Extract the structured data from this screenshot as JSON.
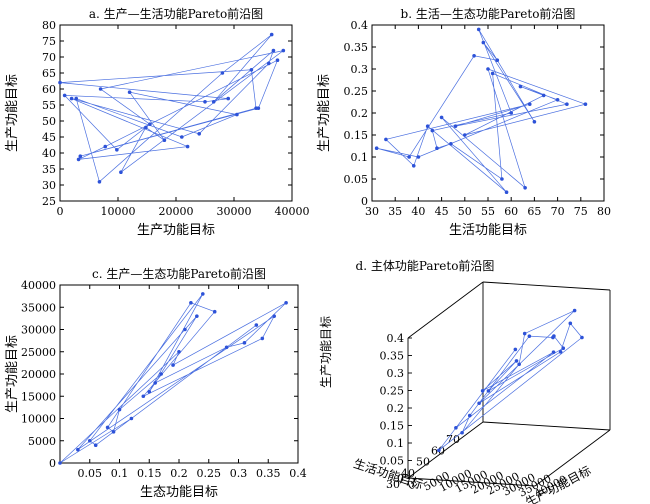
{
  "figure": {
    "colors": {
      "line": "#4a6fe0",
      "marker": "#2d52d8",
      "axis": "#000000"
    }
  },
  "chart_data": [
    {
      "id": "a",
      "type": "line",
      "title": "a. 生产—生活功能Pareto前沿图",
      "xlabel": "生产功能目标",
      "ylabel": "生产功能目标",
      "xlim": [
        0,
        40000
      ],
      "ylim": [
        25,
        80
      ],
      "xticks": [
        0,
        10000,
        20000,
        30000,
        40000
      ],
      "yticks": [
        25,
        30,
        35,
        40,
        45,
        50,
        55,
        60,
        65,
        70,
        75,
        80
      ],
      "grid": false,
      "x": [
        36500,
        0,
        2800,
        3500,
        12000,
        7800,
        10500,
        2000,
        15500,
        36800,
        25000,
        28000,
        33000,
        21000,
        34200,
        18000,
        3200,
        38500,
        24000,
        9800,
        26500,
        29000,
        6800,
        33800,
        30500,
        37500,
        14800,
        22000,
        7000,
        36000,
        800
      ],
      "y": [
        77,
        62,
        57,
        39,
        59,
        42,
        34,
        57,
        49,
        72,
        56,
        65,
        66,
        45,
        54,
        44,
        38,
        72,
        46,
        41,
        56,
        57,
        31,
        54,
        52,
        69,
        48,
        42,
        60,
        68,
        58
      ]
    },
    {
      "id": "b",
      "type": "line",
      "title": "b. 生活—生态功能Pareto前沿图",
      "xlabel": "生活功能目标",
      "ylabel": "生产功能目标",
      "xlim": [
        30,
        80
      ],
      "ylim": [
        0,
        0.4
      ],
      "xticks": [
        30,
        35,
        40,
        45,
        50,
        55,
        60,
        65,
        70,
        75,
        80
      ],
      "yticks": [
        0,
        0.05,
        0.1,
        0.15,
        0.2,
        0.25,
        0.3,
        0.35,
        0.4
      ],
      "grid": false,
      "x": [
        53,
        57,
        31,
        62,
        76,
        45,
        39,
        48,
        58,
        43,
        65,
        52,
        40,
        67,
        55,
        59,
        33,
        72,
        47,
        60,
        54,
        38,
        70,
        50,
        63,
        42,
        64,
        56,
        44
      ],
      "y": [
        0.39,
        0.32,
        0.12,
        0.26,
        0.22,
        0.19,
        0.08,
        0.17,
        0.05,
        0.16,
        0.18,
        0.33,
        0.1,
        0.24,
        0.3,
        0.02,
        0.14,
        0.22,
        0.13,
        0.2,
        0.36,
        0.1,
        0.23,
        0.15,
        0.03,
        0.17,
        0.22,
        0.29,
        0.12
      ]
    },
    {
      "id": "c",
      "type": "line",
      "title": "c. 生产—生态功能Pareto前沿图",
      "xlabel": "生态功能目标",
      "ylabel": "生产功能目标",
      "xlim": [
        0,
        0.4
      ],
      "ylim": [
        0,
        40000
      ],
      "xticks": [
        0.05,
        0.1,
        0.15,
        0.2,
        0.25,
        0.3,
        0.35,
        0.4
      ],
      "yticks": [
        0,
        5000,
        10000,
        15000,
        20000,
        25000,
        30000,
        35000,
        40000
      ],
      "grid": false,
      "x": [
        0.0,
        0.22,
        0.38,
        0.1,
        0.16,
        0.24,
        0.03,
        0.33,
        0.14,
        0.2,
        0.08,
        0.31,
        0.17,
        0.23,
        0.05,
        0.36,
        0.12,
        0.26,
        0.19,
        0.09,
        0.28,
        0.15,
        0.21,
        0.06,
        0.34
      ],
      "y": [
        0,
        36000,
        36000,
        12000,
        18000,
        38000,
        3000,
        31000,
        15000,
        25000,
        8000,
        27000,
        20000,
        33000,
        5000,
        33000,
        10000,
        34000,
        22000,
        7000,
        26000,
        16000,
        30000,
        4000,
        28000
      ]
    },
    {
      "id": "d",
      "type": "scatter",
      "title": "d. 主体功能Pareto前沿图",
      "xlabel": "生活功能目标",
      "ylabel": "生产功能目标",
      "zlabel": "生产功能目标",
      "xlim": [
        30,
        80
      ],
      "ylim": [
        0,
        40000
      ],
      "zlim": [
        0,
        0.4
      ],
      "xticks": [
        30,
        40,
        50,
        60,
        70
      ],
      "yticks": [
        0,
        5000,
        10000,
        15000,
        20000,
        25000,
        30000,
        35000,
        40000
      ],
      "zticks": [
        0,
        0.05,
        0.1,
        0.15,
        0.2,
        0.25,
        0.3,
        0.35,
        0.4
      ],
      "grid": false,
      "x": [
        62,
        55,
        48,
        70,
        58,
        66,
        52,
        74,
        45,
        60,
        68,
        50,
        57,
        64,
        40,
        72,
        54,
        61,
        47,
        67
      ],
      "y": [
        36000,
        22000,
        15000,
        30000,
        25000,
        18000,
        12000,
        34000,
        8000,
        20000,
        28000,
        10000,
        24000,
        32000,
        5000,
        26000,
        14000,
        31000,
        9000,
        35000
      ],
      "z": [
        0.36,
        0.3,
        0.2,
        0.26,
        0.33,
        0.22,
        0.15,
        0.28,
        0.1,
        0.25,
        0.3,
        0.12,
        0.34,
        0.27,
        0.05,
        0.24,
        0.18,
        0.32,
        0.08,
        0.38
      ]
    }
  ]
}
